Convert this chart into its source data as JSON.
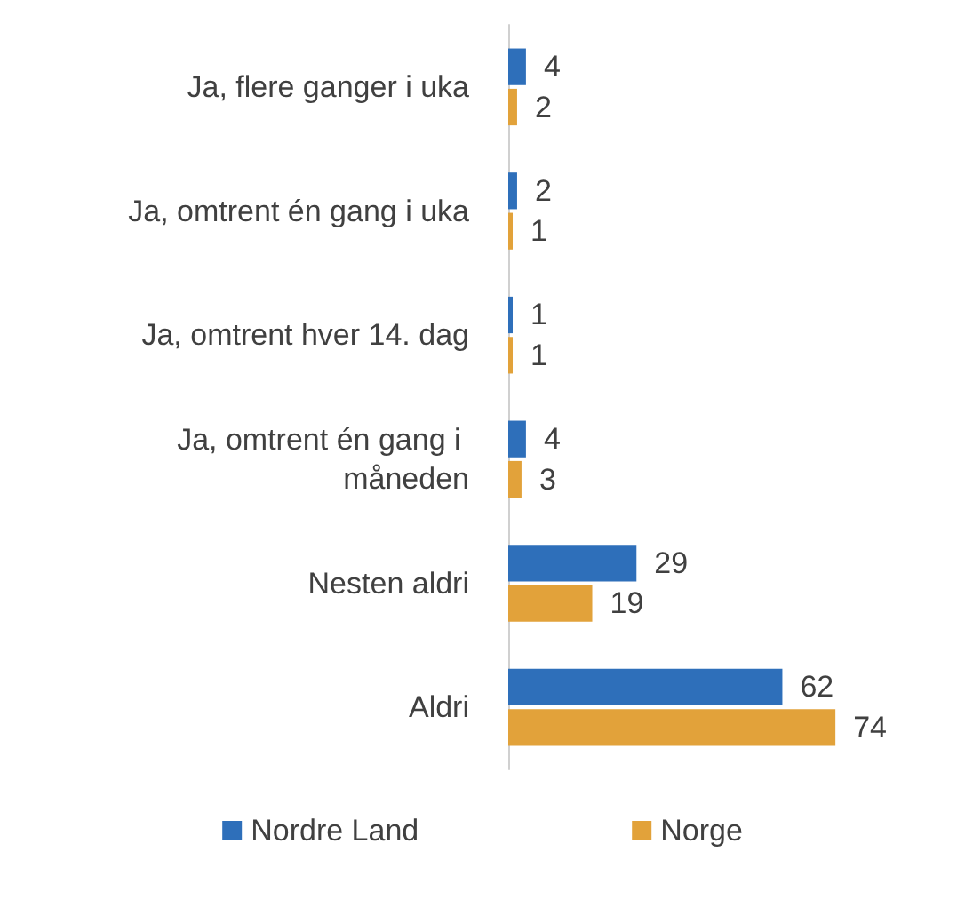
{
  "chart_data": {
    "type": "bar",
    "orientation": "horizontal",
    "categories": [
      "Ja, flere ganger i uka",
      "Ja, omtrent én gang i uka",
      "Ja, omtrent hver 14. dag",
      "Ja, omtrent én gang i måneden",
      "Nesten aldri",
      "Aldri"
    ],
    "series": [
      {
        "name": "Nordre Land",
        "color": "#2e6fba",
        "values": [
          4,
          2,
          1,
          4,
          29,
          62
        ]
      },
      {
        "name": "Norge",
        "color": "#e2a23a",
        "values": [
          2,
          1,
          1,
          3,
          19,
          74
        ]
      }
    ],
    "data_labels": true,
    "legend": "bottom"
  }
}
